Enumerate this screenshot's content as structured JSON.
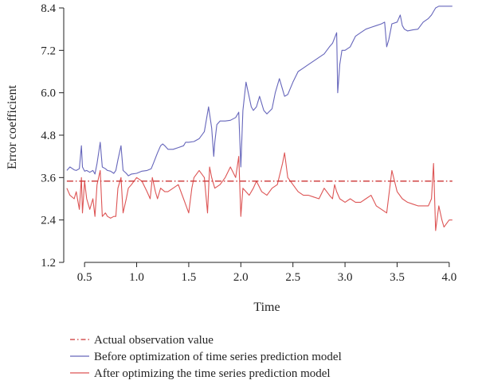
{
  "chart_data": {
    "type": "line",
    "title": "",
    "xlabel": "Time",
    "ylabel": "Error coefficient",
    "xlim": [
      0.3,
      4.2
    ],
    "ylim": [
      1.2,
      8.4
    ],
    "xticks": [
      0.5,
      1.0,
      1.5,
      2.0,
      2.5,
      3.0,
      3.5,
      4.0
    ],
    "yticks": [
      1.2,
      2.4,
      3.6,
      4.8,
      6.0,
      7.2,
      8.4
    ],
    "xtick_labels": [
      "0.5",
      "1.0",
      "1.5",
      "2.0",
      "2.5",
      "3.0",
      "3.5",
      "4.0"
    ],
    "ytick_labels": [
      "1.2",
      "2.4",
      "3.6",
      "4.8",
      "6.0",
      "7.2",
      "8.4"
    ],
    "grid": false,
    "legend_position": "bottom",
    "series": [
      {
        "name": "Actual observation value",
        "color": "#cc3333",
        "style": "dashdot",
        "x": [
          0.33,
          4.03
        ],
        "y": [
          3.5,
          3.5
        ]
      },
      {
        "name": "Before optimization of time series prediction model",
        "color": "#6666bb",
        "style": "solid",
        "x": [
          0.33,
          0.36,
          0.4,
          0.42,
          0.45,
          0.47,
          0.48,
          0.5,
          0.52,
          0.55,
          0.58,
          0.6,
          0.62,
          0.65,
          0.67,
          0.7,
          0.72,
          0.75,
          0.78,
          0.8,
          0.82,
          0.85,
          0.87,
          0.9,
          0.92,
          0.95,
          1.0,
          1.05,
          1.1,
          1.14,
          1.16,
          1.2,
          1.23,
          1.25,
          1.27,
          1.3,
          1.35,
          1.4,
          1.45,
          1.47,
          1.5,
          1.55,
          1.6,
          1.65,
          1.69,
          1.72,
          1.74,
          1.75,
          1.77,
          1.8,
          1.85,
          1.9,
          1.95,
          1.98,
          2.0,
          2.02,
          2.05,
          2.1,
          2.12,
          2.15,
          2.18,
          2.22,
          2.25,
          2.3,
          2.33,
          2.37,
          2.4,
          2.42,
          2.45,
          2.5,
          2.55,
          2.6,
          2.65,
          2.7,
          2.75,
          2.8,
          2.85,
          2.88,
          2.92,
          2.93,
          2.95,
          2.97,
          3.0,
          3.05,
          3.1,
          3.15,
          3.2,
          3.25,
          3.3,
          3.35,
          3.38,
          3.4,
          3.42,
          3.45,
          3.5,
          3.53,
          3.55,
          3.57,
          3.6,
          3.65,
          3.7,
          3.75,
          3.8,
          3.83,
          3.85,
          3.87,
          3.9,
          3.95,
          4.0,
          4.03
        ],
        "y": [
          3.8,
          3.9,
          3.82,
          3.8,
          3.85,
          4.5,
          3.9,
          3.78,
          3.8,
          3.75,
          3.8,
          3.7,
          4.0,
          4.6,
          3.9,
          3.85,
          3.8,
          3.78,
          3.72,
          3.8,
          4.1,
          4.5,
          3.8,
          3.72,
          3.65,
          3.7,
          3.72,
          3.78,
          3.8,
          3.85,
          4.0,
          4.3,
          4.5,
          4.55,
          4.5,
          4.4,
          4.4,
          4.45,
          4.5,
          4.6,
          4.6,
          4.62,
          4.7,
          4.9,
          5.6,
          5.0,
          4.2,
          4.6,
          5.1,
          5.2,
          5.2,
          5.22,
          5.3,
          5.45,
          3.9,
          5.5,
          6.3,
          5.6,
          5.5,
          5.6,
          5.9,
          5.5,
          5.4,
          5.55,
          6.0,
          6.4,
          6.1,
          5.9,
          5.95,
          6.3,
          6.6,
          6.7,
          6.8,
          6.9,
          7.0,
          7.1,
          7.3,
          7.4,
          7.7,
          6.0,
          6.8,
          7.2,
          7.2,
          7.3,
          7.6,
          7.7,
          7.8,
          7.85,
          7.9,
          7.95,
          8.0,
          7.3,
          7.5,
          7.95,
          8.0,
          8.2,
          7.9,
          7.8,
          7.75,
          7.78,
          7.8,
          8.0,
          8.1,
          8.2,
          8.3,
          8.4,
          8.45,
          8.45,
          8.45,
          8.45
        ]
      },
      {
        "name": "After optimizing the time series prediction model",
        "color": "#dd5555",
        "style": "solid",
        "x": [
          0.33,
          0.36,
          0.4,
          0.42,
          0.45,
          0.47,
          0.48,
          0.5,
          0.52,
          0.55,
          0.58,
          0.6,
          0.62,
          0.65,
          0.67,
          0.7,
          0.72,
          0.75,
          0.78,
          0.8,
          0.82,
          0.85,
          0.87,
          0.9,
          0.92,
          0.95,
          1.0,
          1.05,
          1.1,
          1.13,
          1.15,
          1.18,
          1.2,
          1.23,
          1.27,
          1.3,
          1.35,
          1.4,
          1.45,
          1.5,
          1.53,
          1.55,
          1.6,
          1.65,
          1.68,
          1.7,
          1.72,
          1.75,
          1.8,
          1.85,
          1.9,
          1.95,
          1.98,
          2.0,
          2.02,
          2.05,
          2.08,
          2.12,
          2.15,
          2.2,
          2.25,
          2.3,
          2.35,
          2.4,
          2.42,
          2.45,
          2.5,
          2.55,
          2.6,
          2.65,
          2.7,
          2.75,
          2.8,
          2.85,
          2.88,
          2.9,
          2.92,
          2.95,
          3.0,
          3.05,
          3.1,
          3.15,
          3.2,
          3.25,
          3.3,
          3.35,
          3.4,
          3.45,
          3.5,
          3.55,
          3.6,
          3.65,
          3.7,
          3.75,
          3.8,
          3.83,
          3.85,
          3.87,
          3.9,
          3.93,
          3.95,
          4.0,
          4.03
        ],
        "y": [
          3.3,
          3.1,
          3.0,
          3.2,
          2.7,
          3.6,
          2.6,
          3.5,
          3.0,
          2.7,
          3.0,
          2.5,
          3.4,
          3.8,
          2.5,
          2.6,
          2.5,
          2.45,
          2.5,
          2.5,
          3.3,
          3.6,
          2.6,
          3.0,
          3.3,
          3.4,
          3.6,
          3.5,
          3.2,
          3.0,
          3.6,
          3.2,
          3.0,
          3.3,
          3.2,
          3.2,
          3.3,
          3.4,
          3.0,
          2.6,
          3.3,
          3.6,
          3.8,
          3.6,
          2.6,
          3.9,
          3.6,
          3.3,
          3.4,
          3.6,
          3.9,
          3.6,
          4.2,
          2.5,
          3.3,
          3.2,
          3.1,
          3.3,
          3.5,
          3.2,
          3.1,
          3.3,
          3.4,
          4.0,
          4.3,
          3.6,
          3.4,
          3.2,
          3.1,
          3.1,
          3.05,
          3.0,
          3.3,
          3.1,
          3.0,
          3.4,
          3.2,
          3.0,
          2.9,
          3.0,
          2.9,
          2.9,
          3.0,
          3.1,
          2.8,
          2.7,
          2.6,
          3.8,
          3.2,
          3.0,
          2.9,
          2.85,
          2.8,
          2.8,
          2.8,
          3.0,
          4.0,
          2.1,
          2.8,
          2.4,
          2.2,
          2.4,
          2.4
        ]
      }
    ]
  }
}
